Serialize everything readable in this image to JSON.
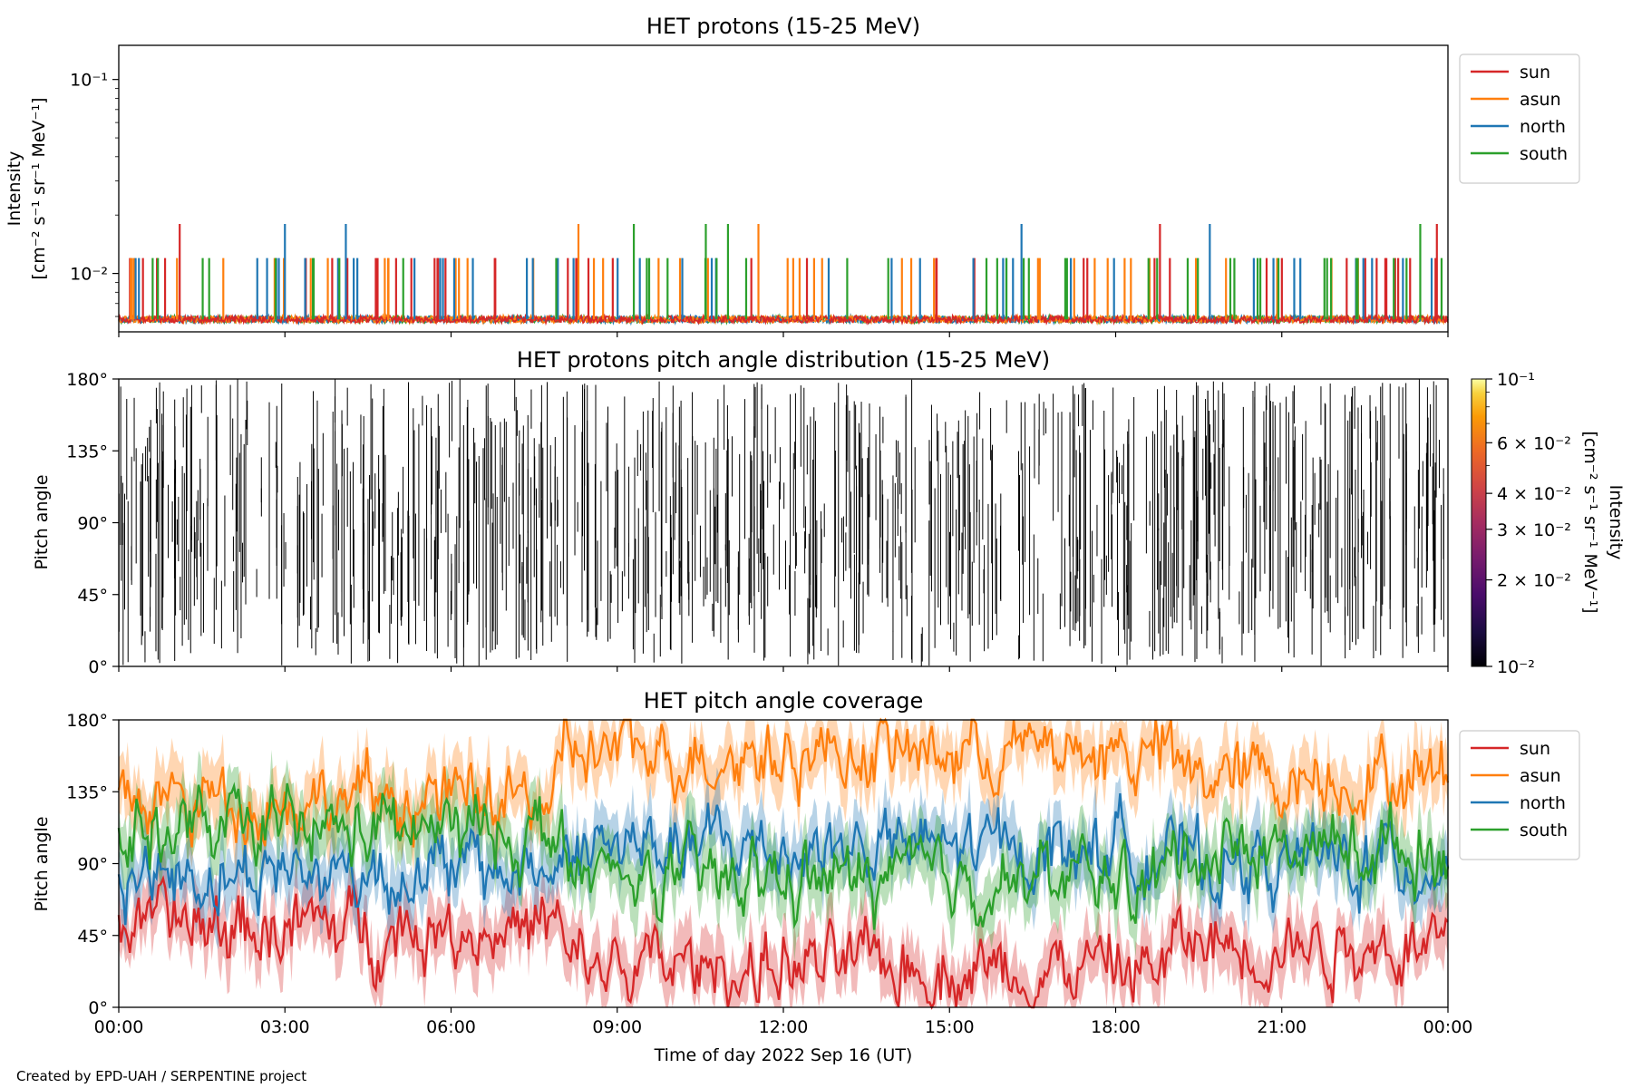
{
  "figure": {
    "footer": "Created by EPD-UAH / SERPENTINE project",
    "xlabel": "Time of day 2022 Sep 16 (UT)",
    "x_ticks": [
      "00:00",
      "03:00",
      "06:00",
      "09:00",
      "12:00",
      "15:00",
      "18:00",
      "21:00",
      "00:00"
    ]
  },
  "chart_data": [
    {
      "type": "line",
      "title": "HET protons (15-25 MeV)",
      "ylabel": "Intensity",
      "yunit": "[cm⁻² s⁻¹ sr⁻¹ MeV⁻¹]",
      "yscale": "log",
      "ylim": [
        0.005,
        0.15
      ],
      "y_ticks": [
        "10⁻¹",
        "10⁻²"
      ],
      "y_tick_values": [
        0.1,
        0.01
      ],
      "xlim_hours": [
        0,
        24
      ],
      "legend_position": "outside-right-top",
      "description_levels": {
        "baseline": 0.0058,
        "single_count": 0.012,
        "double_count": 0.018
      },
      "series": [
        {
          "name": "sun",
          "color": "#d62728",
          "double_count_hours": [
            1.1,
            18.8,
            23.8
          ]
        },
        {
          "name": "asun",
          "color": "#ff7f0e",
          "double_count_hours": [
            8.3,
            11.55
          ]
        },
        {
          "name": "north",
          "color": "#1f77b4",
          "double_count_hours": [
            3.0,
            4.1,
            16.3,
            19.7
          ]
        },
        {
          "name": "south",
          "color": "#2ca02c",
          "double_count_hours": [
            9.3,
            10.6,
            11.0,
            23.5
          ]
        }
      ]
    },
    {
      "type": "heatmap",
      "title": "HET protons pitch angle distribution (15-25 MeV)",
      "ylabel": "Pitch angle",
      "ylim": [
        0,
        180
      ],
      "y_ticks": [
        "0°",
        "45°",
        "90°",
        "135°",
        "180°"
      ],
      "y_tick_values": [
        0,
        45,
        90,
        135,
        180
      ],
      "xlim_hours": [
        0,
        24
      ],
      "colorbar": {
        "label": "Intensity",
        "unit": "[cm⁻² s⁻¹ sr⁻¹ MeV⁻¹]",
        "scale": "log",
        "range": [
          0.01,
          0.1
        ],
        "colormap": "inferno",
        "tick_labels": [
          "10⁻¹",
          "6 × 10⁻²",
          "4 × 10⁻²",
          "3 × 10⁻²",
          "2 × 10⁻²",
          "10⁻²"
        ],
        "tick_values": [
          0.1,
          0.06,
          0.04,
          0.03,
          0.02,
          0.01
        ]
      }
    },
    {
      "type": "line",
      "title": "HET pitch angle coverage",
      "ylabel": "Pitch angle",
      "ylim": [
        0,
        180
      ],
      "y_ticks": [
        "0°",
        "45°",
        "90°",
        "135°",
        "180°"
      ],
      "y_tick_values": [
        0,
        45,
        90,
        135,
        180
      ],
      "xlim_hours": [
        0,
        24
      ],
      "legend_position": "outside-right-top",
      "series": [
        {
          "name": "sun",
          "color": "#d62728",
          "mean_by_period": [
            {
              "hours": [
                0,
                8
              ],
              "value": 50
            },
            {
              "hours": [
                8,
                19
              ],
              "value": 25
            },
            {
              "hours": [
                19,
                24
              ],
              "value": 40
            }
          ]
        },
        {
          "name": "asun",
          "color": "#ff7f0e",
          "mean_by_period": [
            {
              "hours": [
                0,
                8
              ],
              "value": 130
            },
            {
              "hours": [
                8,
                19
              ],
              "value": 160
            },
            {
              "hours": [
                19,
                24
              ],
              "value": 145
            }
          ]
        },
        {
          "name": "north",
          "color": "#1f77b4",
          "mean_by_period": [
            {
              "hours": [
                0,
                8
              ],
              "value": 85
            },
            {
              "hours": [
                8,
                19
              ],
              "value": 100
            },
            {
              "hours": [
                19,
                24
              ],
              "value": 90
            }
          ]
        },
        {
          "name": "south",
          "color": "#2ca02c",
          "mean_by_period": [
            {
              "hours": [
                0,
                8
              ],
              "value": 110
            },
            {
              "hours": [
                8,
                19
              ],
              "value": 80
            },
            {
              "hours": [
                19,
                24
              ],
              "value": 100
            }
          ]
        }
      ]
    }
  ]
}
